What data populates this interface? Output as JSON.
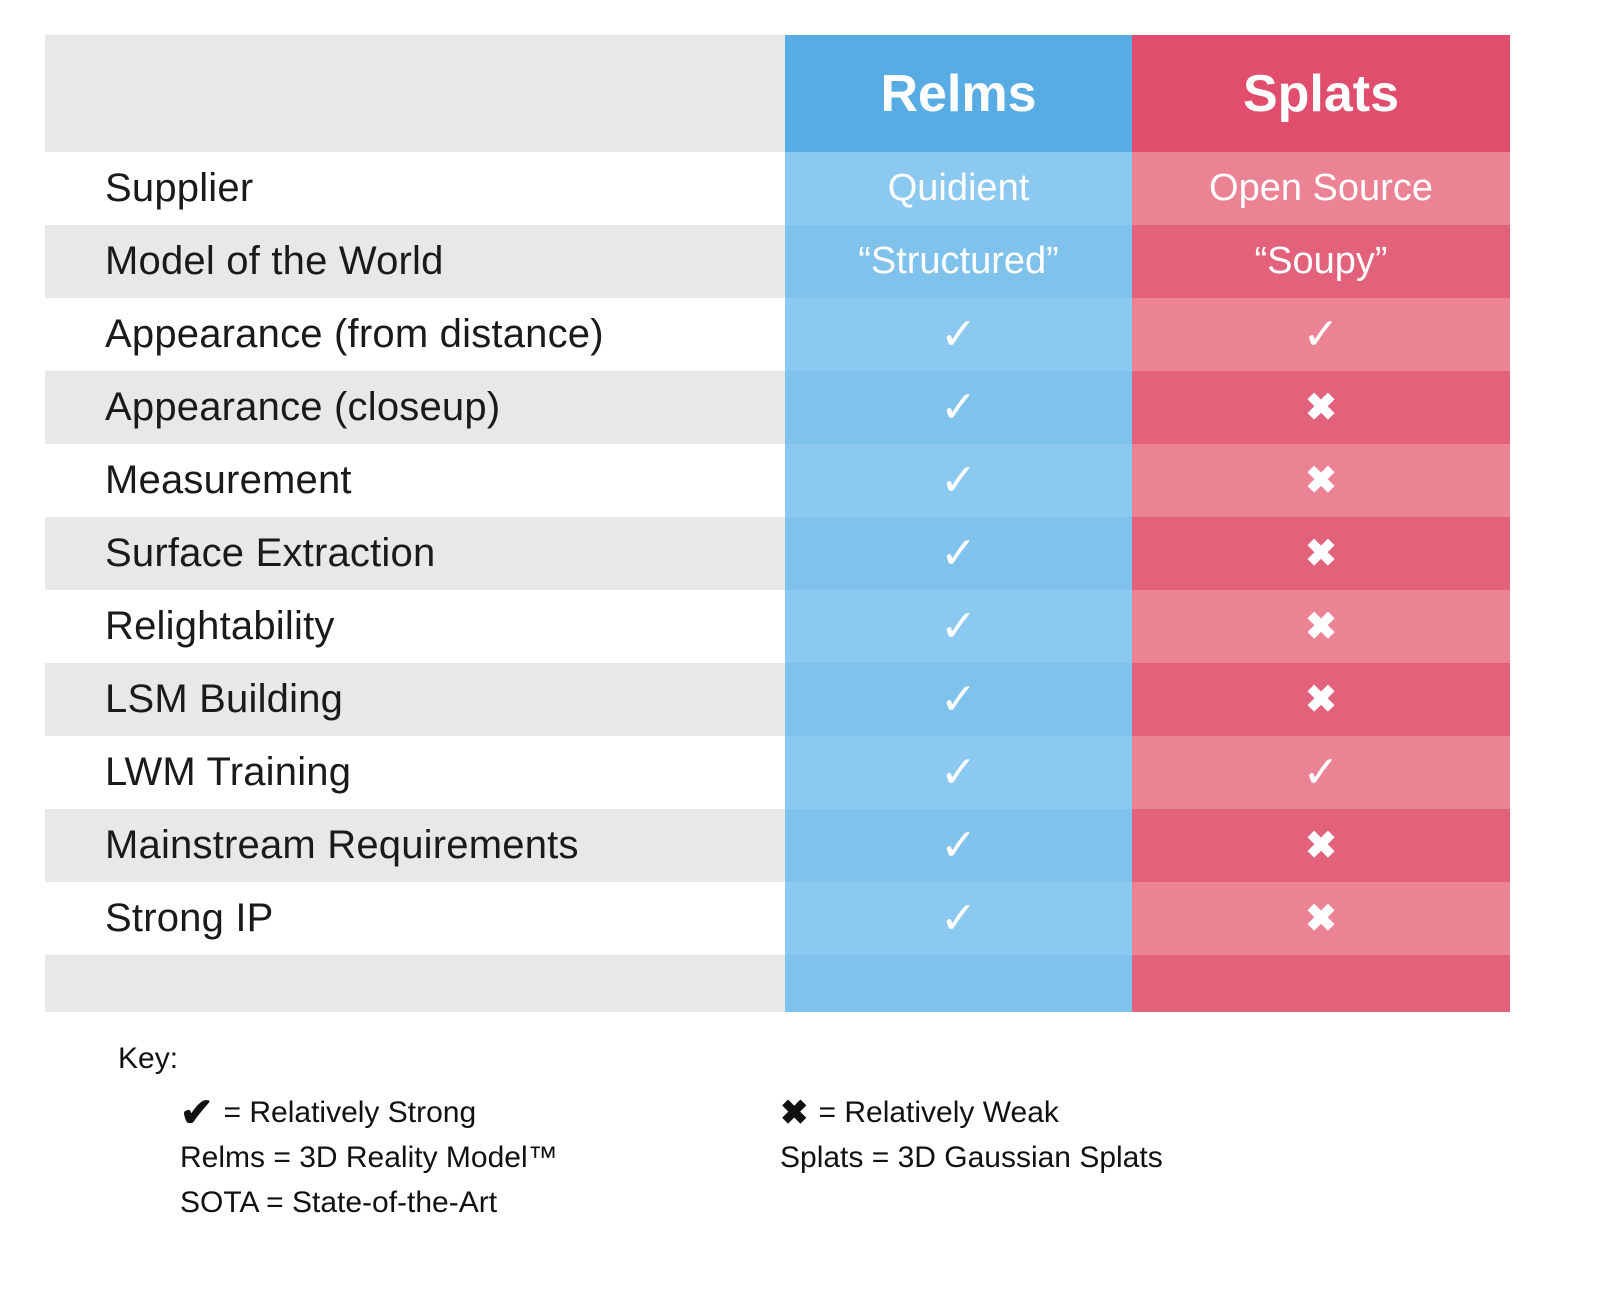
{
  "chart_data": {
    "type": "table",
    "header": {
      "relms": "Relms",
      "splats": "Splats"
    },
    "rows": [
      {
        "label": "Supplier",
        "relms": {
          "text": "Quidient"
        },
        "splats": {
          "text": "Open Source"
        }
      },
      {
        "label": "Model of the World",
        "relms": {
          "text": "“Structured”"
        },
        "splats": {
          "text": "“Soupy”"
        }
      },
      {
        "label": "Appearance (from distance)",
        "relms": {
          "mark": "check"
        },
        "splats": {
          "mark": "check"
        }
      },
      {
        "label": "Appearance (closeup)",
        "relms": {
          "mark": "check"
        },
        "splats": {
          "mark": "cross"
        }
      },
      {
        "label": "Measurement",
        "relms": {
          "mark": "check"
        },
        "splats": {
          "mark": "cross"
        }
      },
      {
        "label": "Surface Extraction",
        "relms": {
          "mark": "check"
        },
        "splats": {
          "mark": "cross"
        }
      },
      {
        "label": "Relightability",
        "relms": {
          "mark": "check"
        },
        "splats": {
          "mark": "cross"
        }
      },
      {
        "label": "LSM Building",
        "relms": {
          "mark": "check"
        },
        "splats": {
          "mark": "cross"
        }
      },
      {
        "label": "LWM Training",
        "relms": {
          "mark": "check"
        },
        "splats": {
          "mark": "check"
        }
      },
      {
        "label": "Mainstream Requirements",
        "relms": {
          "mark": "check"
        },
        "splats": {
          "mark": "cross"
        }
      },
      {
        "label": "Strong IP",
        "relms": {
          "mark": "check"
        },
        "splats": {
          "mark": "cross"
        }
      }
    ],
    "legend": {
      "title": "Key:",
      "left": [
        {
          "glyph": "check",
          "text": "= Relatively Strong"
        },
        {
          "text": "Relms = 3D Reality Model™"
        },
        {
          "text": "SOTA = State-of-the-Art"
        }
      ],
      "right": [
        {
          "glyph": "cross",
          "text": "= Relatively Weak"
        },
        {
          "text": "Splats = 3D Gaussian Splats"
        }
      ]
    }
  },
  "glyphs": {
    "check": "✓",
    "cross": "✖",
    "key_check": "✔",
    "key_cross": "✖"
  },
  "colors": {
    "relms_header": "#57ACE4",
    "relms_row_even": "#8CC9F0",
    "relms_row_odd": "#7FC2EB",
    "splats_header": "#E14E6D",
    "splats_row_even": "#EB8395",
    "splats_row_odd": "#E2617B",
    "label_row_gray": "#E8E8E8",
    "label_text": "#1A1A1A",
    "value_text": "#FFFFFF"
  }
}
